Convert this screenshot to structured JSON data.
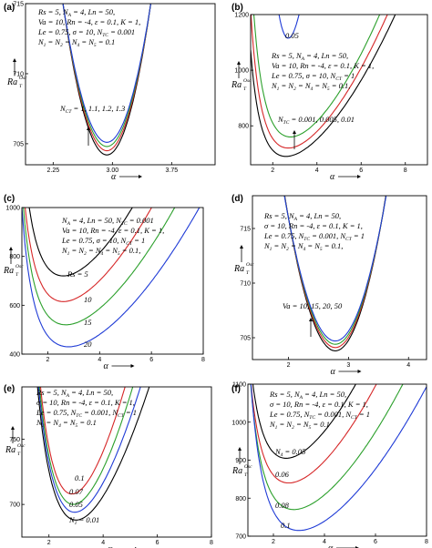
{
  "chart_data": [
    {
      "panel": "(a)",
      "type": "line",
      "xlim": [
        1.9,
        4.3
      ],
      "ylim": [
        703.5,
        715
      ],
      "xticks": [
        "2.25",
        "3.00",
        "3.75"
      ],
      "yticks": [
        "705",
        "710",
        "715"
      ],
      "xlabel": "α",
      "ylabel": "Ra",
      "ylabel_sub": "T",
      "ylabel_sup": "Osc",
      "params": [
        "Rs = 5, N_A = 4, Ln = 50,",
        "Va = 10, Rn = -4, ε = 0.1, K = 1,",
        "Le = 0.75, σ = 10, N_TC = 0.001",
        "N_1 = N_2 = N_4 = N_5 = 0.1"
      ],
      "annotation": "N_CT = 1, 1.1, 1.2, 1.3",
      "series": [
        {
          "color": "#000000",
          "min_x": 2.93,
          "min_y": 704.2,
          "a": 35
        },
        {
          "color": "#d62728",
          "min_x": 2.93,
          "min_y": 704.5,
          "a": 34
        },
        {
          "color": "#2ca02c",
          "min_x": 2.93,
          "min_y": 704.8,
          "a": 33
        },
        {
          "color": "#1f3bd6",
          "min_x": 2.93,
          "min_y": 705.1,
          "a": 32
        }
      ]
    },
    {
      "panel": "(b)",
      "type": "line",
      "xlim": [
        1,
        9
      ],
      "ylim": [
        660,
        1200
      ],
      "xticks": [
        "2",
        "4",
        "6",
        "8"
      ],
      "yticks": [
        "800",
        "1000",
        "1200"
      ],
      "xlabel": "α",
      "ylabel": "Ra",
      "ylabel_sub": "T",
      "ylabel_sup": "Osc",
      "params": [
        "Rs = 5, N_A = 4, Ln = 50,",
        "Va = 10, Rn = -4, ε = 0.1, K = 1,",
        "Le = 0.75, σ = 10, N_CT = 1",
        "N_1 = N_2 = N_4 = N_5 = 0.1,"
      ],
      "annotation": "N_TC = 0.001, 0.005, 0.01",
      "label_blue": "0.05",
      "series": [
        {
          "color": "#000000",
          "min_x": 2.6,
          "min_y": 690,
          "b": 15
        },
        {
          "color": "#d62728",
          "min_x": 2.7,
          "min_y": 720,
          "b": 17
        },
        {
          "color": "#2ca02c",
          "min_x": 2.8,
          "min_y": 760,
          "b": 19
        },
        {
          "color": "#1f3bd6",
          "min_x": 2.7,
          "min_y": 1115,
          "b": 140
        }
      ]
    },
    {
      "panel": "(c)",
      "type": "line",
      "xlim": [
        1,
        8
      ],
      "ylim": [
        400,
        1000
      ],
      "xticks": [
        "2",
        "4",
        "6",
        "8"
      ],
      "yticks": [
        "400",
        "600",
        "800",
        "1000"
      ],
      "xlabel": "α",
      "ylabel": "Ra",
      "ylabel_sub": "T",
      "ylabel_sup": "Osc",
      "params": [
        "N_A = 4, Ln = 50, N_TC = 0.001",
        "Va = 10, Rn = -4, ε = 0.1, K = 1,",
        "Le = 0.75, σ = 10, N_CT = 1",
        "N_1 = N_2 = N_4 = N_5 = 0.1,"
      ],
      "series": [
        {
          "name": "Rs = 5",
          "color": "#000000",
          "min_x": 2.6,
          "min_y": 720,
          "b": 23
        },
        {
          "name": "10",
          "color": "#d62728",
          "min_x": 2.6,
          "min_y": 615,
          "b": 21
        },
        {
          "name": "15",
          "color": "#2ca02c",
          "min_x": 2.7,
          "min_y": 520,
          "b": 19
        },
        {
          "name": "20",
          "color": "#1f3bd6",
          "min_x": 2.8,
          "min_y": 430,
          "b": 17
        }
      ]
    },
    {
      "panel": "(d)",
      "type": "line",
      "xlim": [
        1.4,
        4.3
      ],
      "ylim": [
        703,
        718
      ],
      "xticks": [
        "2",
        "3",
        "4"
      ],
      "yticks": [
        "705",
        "710",
        "715"
      ],
      "xlabel": "α",
      "ylabel": "Ra",
      "ylabel_sub": "T",
      "ylabel_sup": "Osc",
      "params": [
        "Rs = 5, N_A = 4, Ln = 50,",
        "σ = 10, Rn = -4, ε = 0.1, K = 1,",
        "Le = 0.75, N_TC = 0.001, N_CT = 1",
        "N_1 = N_2 = N_4 = N_5 = 0.1,"
      ],
      "annotation": "Va = 10, 15, 20, 50",
      "series": [
        {
          "color": "#000000",
          "min_x": 2.78,
          "min_y": 703.8,
          "a": 20
        },
        {
          "color": "#d62728",
          "min_x": 2.78,
          "min_y": 704.1,
          "a": 19.5
        },
        {
          "color": "#2ca02c",
          "min_x": 2.78,
          "min_y": 704.4,
          "a": 19
        },
        {
          "color": "#1f3bd6",
          "min_x": 2.78,
          "min_y": 704.7,
          "a": 18.5
        }
      ]
    },
    {
      "panel": "(e)",
      "type": "line",
      "xlim": [
        1,
        8
      ],
      "ylim": [
        675,
        790
      ],
      "xticks": [
        "2",
        "4",
        "6",
        "8"
      ],
      "yticks": [
        "700",
        "750"
      ],
      "xlabel": "α",
      "ylabel": "Ra",
      "ylabel_sub": "T",
      "ylabel_sup": "Osc",
      "params": [
        "Rs = 5, N_A = 4, Ln = 50,",
        "σ = 10, Rn = -4, ε = 0.1, K = 1,",
        "Le = 0.75, N_TC = 0.001, N_CT = 1",
        "N_2 = N_4 = N_5 = 0.1"
      ],
      "series": [
        {
          "name": "N_1 = 0.01",
          "color": "#000000",
          "min_x": 3.0,
          "min_y": 688,
          "b": 9
        },
        {
          "name": "0.05",
          "color": "#1f3bd6",
          "min_x": 2.95,
          "min_y": 694,
          "b": 10
        },
        {
          "name": "0.07",
          "color": "#2ca02c",
          "min_x": 2.9,
          "min_y": 700,
          "b": 11
        },
        {
          "name": "0.1",
          "color": "#d62728",
          "min_x": 2.85,
          "min_y": 708,
          "b": 12
        }
      ]
    },
    {
      "panel": "(f)",
      "type": "line",
      "xlim": [
        1,
        8
      ],
      "ylim": [
        700,
        1100
      ],
      "xticks": [
        "2",
        "4",
        "6",
        "8"
      ],
      "yticks": [
        "700",
        "800",
        "900",
        "1000",
        "1100"
      ],
      "xlabel": "α",
      "ylabel": "Ra",
      "ylabel_sub": "T",
      "ylabel_sup": "Osc",
      "params": [
        "Rs = 5, N_A = 4, Ln = 50,",
        "σ = 10, Rn = -4, ε = 0.1, K = 1,",
        "Le = 0.75, N_TC = 0.001, N_CT = 1",
        "N_1 = N_2 = N_5 = 0.1"
      ],
      "series": [
        {
          "name": "N_4 = 0.05",
          "color": "#000000",
          "min_x": 2.5,
          "min_y": 905,
          "b": 15
        },
        {
          "name": "0.06",
          "color": "#d62728",
          "min_x": 2.6,
          "min_y": 840,
          "b": 14
        },
        {
          "name": "0.08",
          "color": "#2ca02c",
          "min_x": 2.8,
          "min_y": 770,
          "b": 13
        },
        {
          "name": "0.1",
          "color": "#1f3bd6",
          "min_x": 3.0,
          "min_y": 715,
          "b": 12
        }
      ]
    }
  ]
}
